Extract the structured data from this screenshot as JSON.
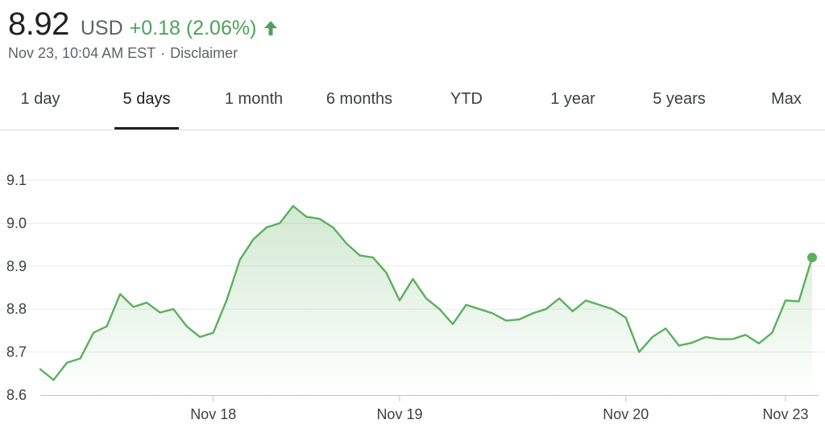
{
  "quote": {
    "price": "8.92",
    "currency": "USD",
    "change": "+0.18 (2.06%)",
    "direction_icon": "arrow-up-icon",
    "timestamp": "Nov 23, 10:04 AM EST",
    "separator": "·",
    "disclaimer": "Disclaimer"
  },
  "colors": {
    "positive": "#4CA25A",
    "line": "#5BB05E",
    "grid": "#e8eaed",
    "axis": "#bdc1c6",
    "active_tab": "#202124"
  },
  "tabs": [
    {
      "label": "1 day",
      "active": false
    },
    {
      "label": "5 days",
      "active": true
    },
    {
      "label": "1 month",
      "active": false
    },
    {
      "label": "6 months",
      "active": false
    },
    {
      "label": "YTD",
      "active": false
    },
    {
      "label": "1 year",
      "active": false
    },
    {
      "label": "5 years",
      "active": false
    },
    {
      "label": "Max",
      "active": false
    }
  ],
  "chart_data": {
    "type": "area",
    "title": "",
    "xlabel": "",
    "ylabel": "",
    "ylim": [
      8.6,
      9.1
    ],
    "yticks": [
      "8.6",
      "8.7",
      "8.8",
      "8.9",
      "9.0",
      "9.1"
    ],
    "xtick_labels": [
      "Nov 18",
      "Nov 19",
      "Nov 20",
      "Nov 23"
    ],
    "grid": true,
    "series": [
      {
        "values": [
          8.66,
          8.635,
          8.675,
          8.685,
          8.745,
          8.76,
          8.835,
          8.805,
          8.815,
          8.792,
          8.8,
          8.76,
          8.735,
          8.745,
          8.82,
          8.915,
          8.962,
          8.99,
          9.0,
          9.04,
          9.015,
          9.01,
          8.99,
          8.953,
          8.925,
          8.92,
          8.885,
          8.82,
          8.87,
          8.825,
          8.8,
          8.765,
          8.81,
          8.8,
          8.79,
          8.773,
          8.776,
          8.79,
          8.8,
          8.825,
          8.795,
          8.82,
          8.81,
          8.8,
          8.78,
          8.7,
          8.735,
          8.755,
          8.715,
          8.722,
          8.735,
          8.73,
          8.73,
          8.74,
          8.72,
          8.745,
          8.82,
          8.818,
          8.92
        ]
      }
    ],
    "day_boundaries": [
      13,
      27,
      44,
      56
    ]
  }
}
